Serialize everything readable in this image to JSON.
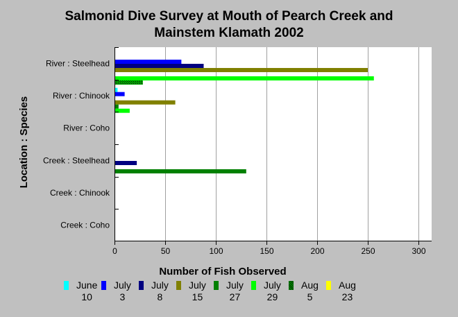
{
  "chart_data": {
    "type": "bar",
    "orientation": "horizontal",
    "title": [
      "Salmonid Dive Survey at Mouth of Pearch Creek and",
      "Mainstem Klamath 2002"
    ],
    "xlabel": "Number of Fish Observed",
    "ylabel": "Location : Species",
    "xlim": [
      0,
      300
    ],
    "xticks": [
      "0",
      "50",
      "100",
      "150",
      "200",
      "250",
      "300"
    ],
    "categories": [
      "River : Steelhead",
      "River :  Chinook",
      "River :  Coho",
      "Creek : Steelhead",
      "Creek : Chinook",
      "Creek :  Coho"
    ],
    "series": [
      {
        "name": "June 10",
        "label_lines": [
          "June",
          "10"
        ],
        "color": "#00ffff",
        "values": [
          0,
          3,
          0,
          0,
          0,
          0
        ]
      },
      {
        "name": "July 3",
        "label_lines": [
          "July",
          "3"
        ],
        "color": "#0000ff",
        "values": [
          66,
          10,
          0,
          0,
          0,
          0
        ]
      },
      {
        "name": "July 8",
        "label_lines": [
          "July",
          "8"
        ],
        "color": "#000080",
        "values": [
          88,
          0,
          0,
          22,
          0,
          0
        ]
      },
      {
        "name": "July 15",
        "label_lines": [
          "July",
          "15"
        ],
        "color": "#808000",
        "values": [
          250,
          60,
          0,
          0,
          0,
          0
        ]
      },
      {
        "name": "July 27",
        "label_lines": [
          "July",
          "27"
        ],
        "color": "#008000",
        "values": [
          0,
          4,
          0,
          130,
          0,
          0
        ]
      },
      {
        "name": "July 29",
        "label_lines": [
          "July",
          "29"
        ],
        "color": "#00ff00",
        "values": [
          256,
          15,
          0,
          0,
          0,
          0
        ]
      },
      {
        "name": "Aug 5",
        "label_lines": [
          "Aug",
          "5"
        ],
        "color": "#008000",
        "pattern": "hatched",
        "values": [
          28,
          0,
          0,
          0,
          0,
          0
        ]
      },
      {
        "name": "Aug 23",
        "label_lines": [
          "Aug",
          "23"
        ],
        "color": "#ffff00",
        "values": [
          0,
          0,
          0,
          0,
          0,
          0
        ]
      }
    ],
    "grid": true,
    "legend_position": "bottom"
  }
}
